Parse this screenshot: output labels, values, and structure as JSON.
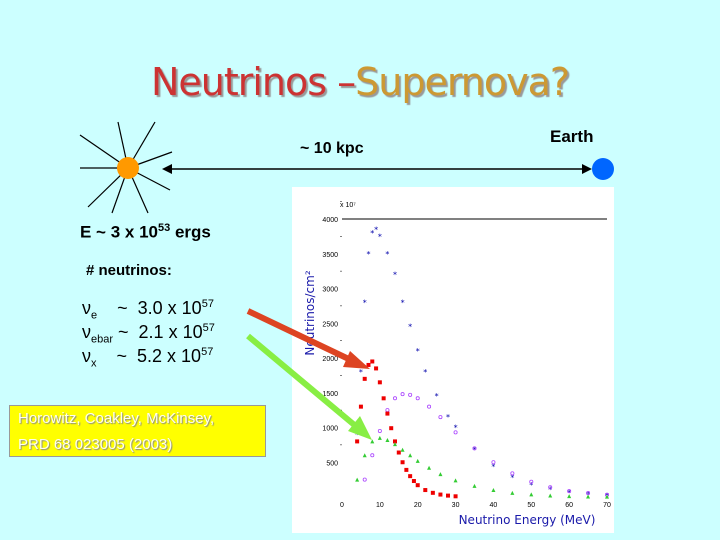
{
  "slide": {
    "title_part1": "Neutrinos –",
    "title_part2": "Supernova?",
    "distance_label": "~ 10 kpc",
    "earth_label": "Earth",
    "energy_prefix": "E ~ 3 x 10",
    "energy_exp": "53",
    "energy_unit": " ergs",
    "neutrinos_heading": "# neutrinos:",
    "rows": [
      {
        "sym": "ν",
        "sub": "e",
        "rest": "    ~  3.0 x 10",
        "exp": "57"
      },
      {
        "sym": "ν",
        "sub": "ebar",
        "rest": " ~  2.1 x 10",
        "exp": "57"
      },
      {
        "sym": "ν",
        "sub": "x",
        "rest": "    ~  5.2 x 10",
        "exp": "57"
      }
    ],
    "reference_line1": "Horowitz, Coakley, McKinsey,",
    "reference_line2": "PRD 68 023005 (2003)",
    "colors": {
      "sun": "#ff9900",
      "earth": "#0066ff",
      "ve": "#ee0000",
      "vebar": "#33cc33",
      "vx": "#0000aa",
      "vx2": "#aa44ff"
    }
  },
  "chart_data": {
    "type": "scatter",
    "ylabel": "Neutrinos/cm²",
    "xlabel": "Neutrino Energy (MeV)",
    "y_multiplier": "x 10⁷",
    "xlim": [
      0,
      70
    ],
    "ylim": [
      0,
      4000
    ],
    "x_ticks": [
      "0",
      "10",
      "20",
      "30",
      "40",
      "50",
      "60",
      "70"
    ],
    "y_ticks": [
      "500",
      "1000",
      "1500",
      "2000",
      "2500",
      "3000",
      "3500",
      "4000"
    ],
    "series": [
      {
        "color": "#0000aa",
        "points": [
          [
            4,
            900
          ],
          [
            5,
            1800
          ],
          [
            6,
            2800
          ],
          [
            7,
            3500
          ],
          [
            8,
            3800
          ],
          [
            9,
            3850
          ],
          [
            10,
            3750
          ],
          [
            12,
            3500
          ],
          [
            14,
            3200
          ],
          [
            16,
            2800
          ],
          [
            18,
            2450
          ],
          [
            20,
            2100
          ],
          [
            22,
            1800
          ],
          [
            25,
            1450
          ],
          [
            28,
            1150
          ],
          [
            30,
            1000
          ],
          [
            35,
            680
          ],
          [
            40,
            440
          ],
          [
            45,
            280
          ],
          [
            50,
            175
          ],
          [
            55,
            105
          ],
          [
            60,
            65
          ],
          [
            65,
            40
          ],
          [
            70,
            25
          ]
        ]
      },
      {
        "color": "#aa44ff",
        "points": [
          [
            6,
            250
          ],
          [
            8,
            600
          ],
          [
            10,
            950
          ],
          [
            12,
            1250
          ],
          [
            14,
            1420
          ],
          [
            16,
            1480
          ],
          [
            18,
            1470
          ],
          [
            20,
            1420
          ],
          [
            23,
            1300
          ],
          [
            26,
            1150
          ],
          [
            30,
            930
          ],
          [
            35,
            700
          ],
          [
            40,
            500
          ],
          [
            45,
            340
          ],
          [
            50,
            220
          ],
          [
            55,
            140
          ],
          [
            60,
            85
          ],
          [
            65,
            55
          ],
          [
            70,
            30
          ]
        ]
      },
      {
        "color": "#ee0000",
        "points": [
          [
            4,
            800
          ],
          [
            5,
            1300
          ],
          [
            6,
            1700
          ],
          [
            7,
            1900
          ],
          [
            8,
            1950
          ],
          [
            9,
            1850
          ],
          [
            10,
            1650
          ],
          [
            11,
            1420
          ],
          [
            12,
            1200
          ],
          [
            13,
            990
          ],
          [
            14,
            800
          ],
          [
            15,
            640
          ],
          [
            16,
            500
          ],
          [
            17,
            390
          ],
          [
            18,
            300
          ],
          [
            19,
            230
          ],
          [
            20,
            170
          ],
          [
            22,
            100
          ],
          [
            24,
            60
          ],
          [
            26,
            35
          ],
          [
            28,
            20
          ],
          [
            30,
            10
          ]
        ]
      },
      {
        "color": "#33cc33",
        "points": [
          [
            4,
            250
          ],
          [
            6,
            600
          ],
          [
            8,
            800
          ],
          [
            10,
            850
          ],
          [
            12,
            820
          ],
          [
            14,
            760
          ],
          [
            16,
            680
          ],
          [
            18,
            600
          ],
          [
            20,
            520
          ],
          [
            23,
            420
          ],
          [
            26,
            330
          ],
          [
            30,
            240
          ],
          [
            35,
            160
          ],
          [
            40,
            100
          ],
          [
            45,
            60
          ],
          [
            50,
            38
          ],
          [
            55,
            22
          ],
          [
            60,
            13
          ],
          [
            65,
            8
          ],
          [
            70,
            5
          ]
        ]
      }
    ]
  }
}
